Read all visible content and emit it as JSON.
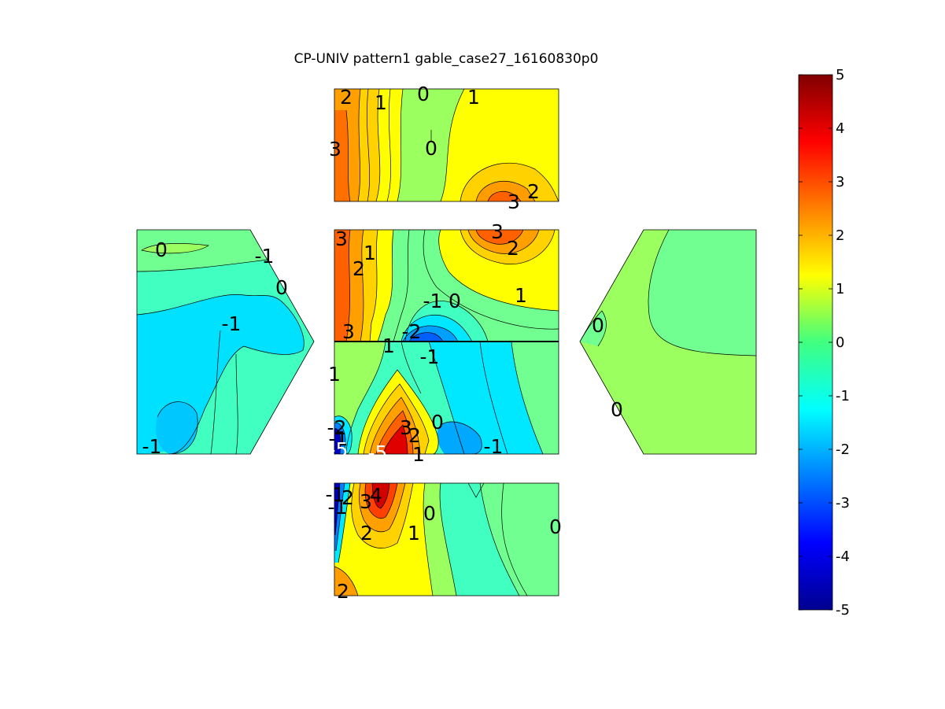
{
  "chart_data": {
    "type": "heatmap",
    "title": "CP-UNIV pattern1 gable_case27_16160830p0",
    "colormap": "jet",
    "clim": [
      -5,
      5
    ],
    "colorbar": {
      "ticks": [
        5,
        4,
        3,
        2,
        1,
        0,
        -1,
        -2,
        -3,
        -4,
        -5
      ],
      "tick_labels": [
        "5",
        "4",
        "3",
        "2",
        "1",
        "0",
        "-1",
        "-2",
        "-3",
        "-4",
        "-5"
      ]
    },
    "panels": [
      {
        "name": "top-roof-face",
        "contour_labels": [
          "2",
          "1",
          "0",
          "1",
          "3",
          "0",
          "3",
          "2"
        ]
      },
      {
        "name": "left-gable-wall",
        "contour_labels": [
          "0",
          "-1",
          "0",
          "-1",
          "-1"
        ]
      },
      {
        "name": "center-upper-wall",
        "contour_labels": [
          "3",
          "1",
          "2",
          "3",
          "2",
          "1",
          "-1",
          "0",
          "3",
          "-2",
          "1"
        ]
      },
      {
        "name": "center-lower-wall",
        "contour_labels": [
          "-1",
          "1",
          "-2",
          "-1",
          "3",
          "2",
          "0",
          "-1",
          "-5",
          "-5",
          "1"
        ]
      },
      {
        "name": "right-gable-wall",
        "contour_labels": [
          "0",
          "0"
        ]
      },
      {
        "name": "bottom-roof-face",
        "contour_labels": [
          "-1",
          "2",
          "3",
          "4",
          "-1",
          "2",
          "1",
          "0",
          "0",
          "2"
        ]
      }
    ]
  }
}
